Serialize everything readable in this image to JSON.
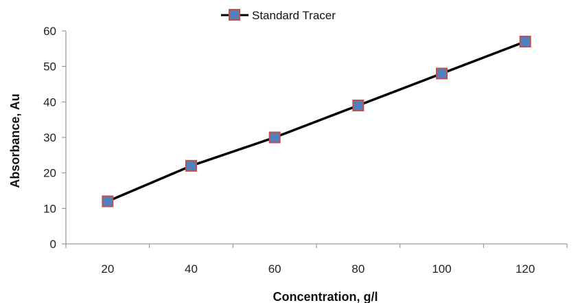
{
  "chart_data": {
    "type": "line",
    "title": "",
    "xlabel": "Concentration, g/l",
    "ylabel": "Absorbance, Au",
    "categories": [
      "20",
      "40",
      "60",
      "80",
      "100",
      "120"
    ],
    "yticks": [
      "0",
      "10",
      "20",
      "30",
      "40",
      "50",
      "60"
    ],
    "ylim": [
      0,
      60
    ],
    "grid": false,
    "legend_position": "top",
    "series": [
      {
        "name": "Standard Tracer",
        "values": [
          12,
          22,
          30,
          39,
          48,
          57
        ],
        "line_color": "#000000",
        "marker": "square",
        "marker_fill": "#4f81bd",
        "marker_edge": "#c0504d"
      }
    ]
  }
}
